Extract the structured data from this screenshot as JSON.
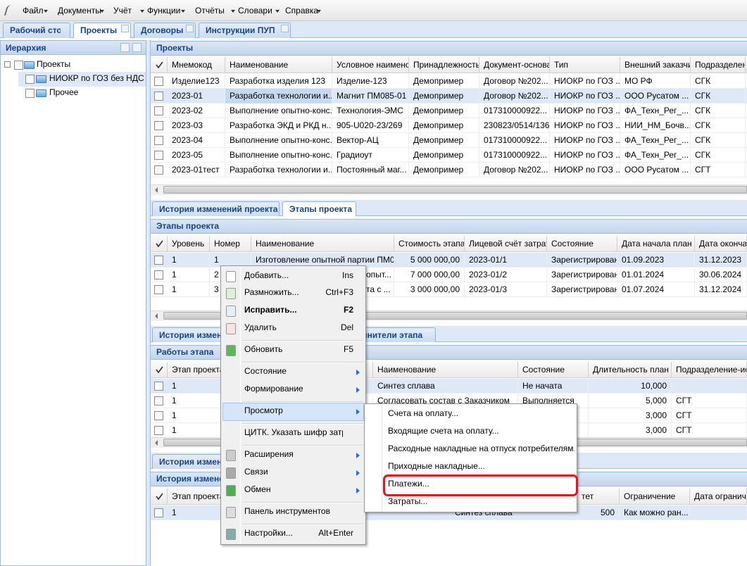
{
  "menu_bar": {
    "items": [
      "Файл",
      "Документы",
      "Учёт",
      "Функции",
      "Отчёты",
      "Словари",
      "Справка"
    ]
  },
  "tabs": [
    "Рабочий стол",
    "Проекты",
    "Договоры",
    "Инструкции ПУП"
  ],
  "hierarchy": {
    "title": "Иерархия",
    "nodes": [
      "Проекты",
      "НИОКР по ГОЗ без НДС",
      "Прочее"
    ]
  },
  "projects": {
    "title": "Проекты",
    "columns": [
      "Мнемокод",
      "Наименование",
      "Условное наименова",
      "Принадлежность",
      "Документ-основан",
      "Тип",
      "Внешний заказчик",
      "Подразделени"
    ],
    "rows": [
      [
        "Изделие123",
        "Разработка изделия 123",
        "Изделие-123",
        "Демопример",
        "Договор №202...",
        "НИОКР по ГОЗ ...",
        "МО РФ",
        "СГК"
      ],
      [
        "2023-01",
        "Разработка технологии и...",
        "Магнит ПМ085-01",
        "Демопример",
        "Договор №202...",
        "НИОКР по ГОЗ ...",
        "ООО Русатом ...",
        "СГК"
      ],
      [
        "2023-02",
        "Выполнение опытно-конс...",
        "Технология-ЭМС",
        "Демопример",
        "017310000922...",
        "НИОКР по ГОЗ ...",
        "ФА_Техн_Рег_...",
        "СГК"
      ],
      [
        "2023-03",
        "Разработка ЭКД и РКД н...",
        "905-U020-23/269",
        "Демопример",
        "230823/0514/136",
        "НИОКР по ГОЗ ...",
        "НИИ_НМ_Бочв...",
        "СГК"
      ],
      [
        "2023-04",
        "Выполнение опытно-конс...",
        "Вектор-АЦ",
        "Демопример",
        "017310000922...",
        "НИОКР по ГОЗ ...",
        "ФА_Техн_Рег_...",
        "СГК"
      ],
      [
        "2023-05",
        "Выполнение опытно-конс...",
        "Градиоут",
        "Демопример",
        "017310000922...",
        "НИОКР по ГОЗ ...",
        "ФА_Техн_Рег_...",
        "СГК"
      ],
      [
        "2023-01тест",
        "Разработка технологии и...",
        "Постоянный маг...",
        "Демопример",
        "Договор №202...",
        "НИОКР по ГОЗ ...",
        "ООО Русатом ...",
        "СГТ"
      ]
    ]
  },
  "project_tabs": [
    "История изменений проекта",
    "Этапы проекта"
  ],
  "stages": {
    "title": "Этапы проекта",
    "columns": [
      "Уровень",
      "Номер",
      "Наименование",
      "Стоимость этапа",
      "Лицевой счёт затрат.",
      "Состояние",
      "Дата начала план",
      "Дата окончан"
    ],
    "rows": [
      [
        "1",
        "1",
        "Изготовление опытной партии ПМ0...",
        "5 000 000,00",
        "2023-01/1",
        "Зарегистрирован",
        "01.09.2023",
        "31.12.2023"
      ],
      [
        "1",
        "2",
        "опыт...",
        "7 000 000,00",
        "2023-01/2",
        "Зарегистрирован",
        "01.01.2024",
        "30.06.2024"
      ],
      [
        "1",
        "3",
        "та с ...",
        "3 000 000,00",
        "2023-01/3",
        "Зарегистрирован",
        "01.07.2024",
        "31.12.2024"
      ]
    ]
  },
  "stage_tabs": [
    "История измене",
    "олнители этапа"
  ],
  "works": {
    "title": "Работы этапа",
    "columns": [
      "Этап проекта",
      "Наименование",
      "Состояние",
      "Длительность план",
      "Подразделение-исп"
    ],
    "rows": [
      [
        "1",
        "Синтез сплава",
        "Не начата",
        "10,000",
        null
      ],
      [
        "1",
        "Согласовать состав с Заказчиком",
        "Выполняется",
        "5,000",
        "СГТ"
      ],
      [
        "1",
        null,
        null,
        "3,000",
        "СГТ"
      ],
      [
        "1",
        null,
        null,
        "3,000",
        "СГТ"
      ]
    ]
  },
  "work_tabs": [
    "История измене"
  ],
  "history": {
    "title": "История измене",
    "columns": [
      "Этап проекта",
      null,
      "тет",
      "Ограничение",
      "Дата ограничен"
    ],
    "rows": [
      [
        "1",
        "Синтез сплава",
        "500",
        "Как можно ран...",
        null
      ]
    ]
  },
  "context_menu": {
    "items": [
      {
        "label": "Добавить...",
        "shortcut": "Ins"
      },
      {
        "label": "Размножить...",
        "shortcut": "Ctrl+F3"
      },
      {
        "label": "Исправить...",
        "shortcut": "F2"
      },
      {
        "label": "Удалить",
        "shortcut": "Del"
      },
      {
        "label": "Обновить",
        "shortcut": "F5"
      },
      {
        "label": "Состояние"
      },
      {
        "label": "Формирование"
      },
      {
        "label": "Просмотр"
      },
      {
        "label": "ЦИТК. Указать шифр затрат..."
      },
      {
        "label": "Расширения"
      },
      {
        "label": "Связи"
      },
      {
        "label": "Обмен"
      },
      {
        "label": "Панель инструментов"
      },
      {
        "label": "Настройки...",
        "shortcut": "Alt+Enter"
      }
    ]
  },
  "submenu": {
    "items": [
      "Счета на оплату...",
      "Входящие счета на оплату...",
      "Расходные накладные на отпуск потребителям...",
      "Приходные накладные...",
      "Платежи...",
      "Затраты..."
    ]
  }
}
